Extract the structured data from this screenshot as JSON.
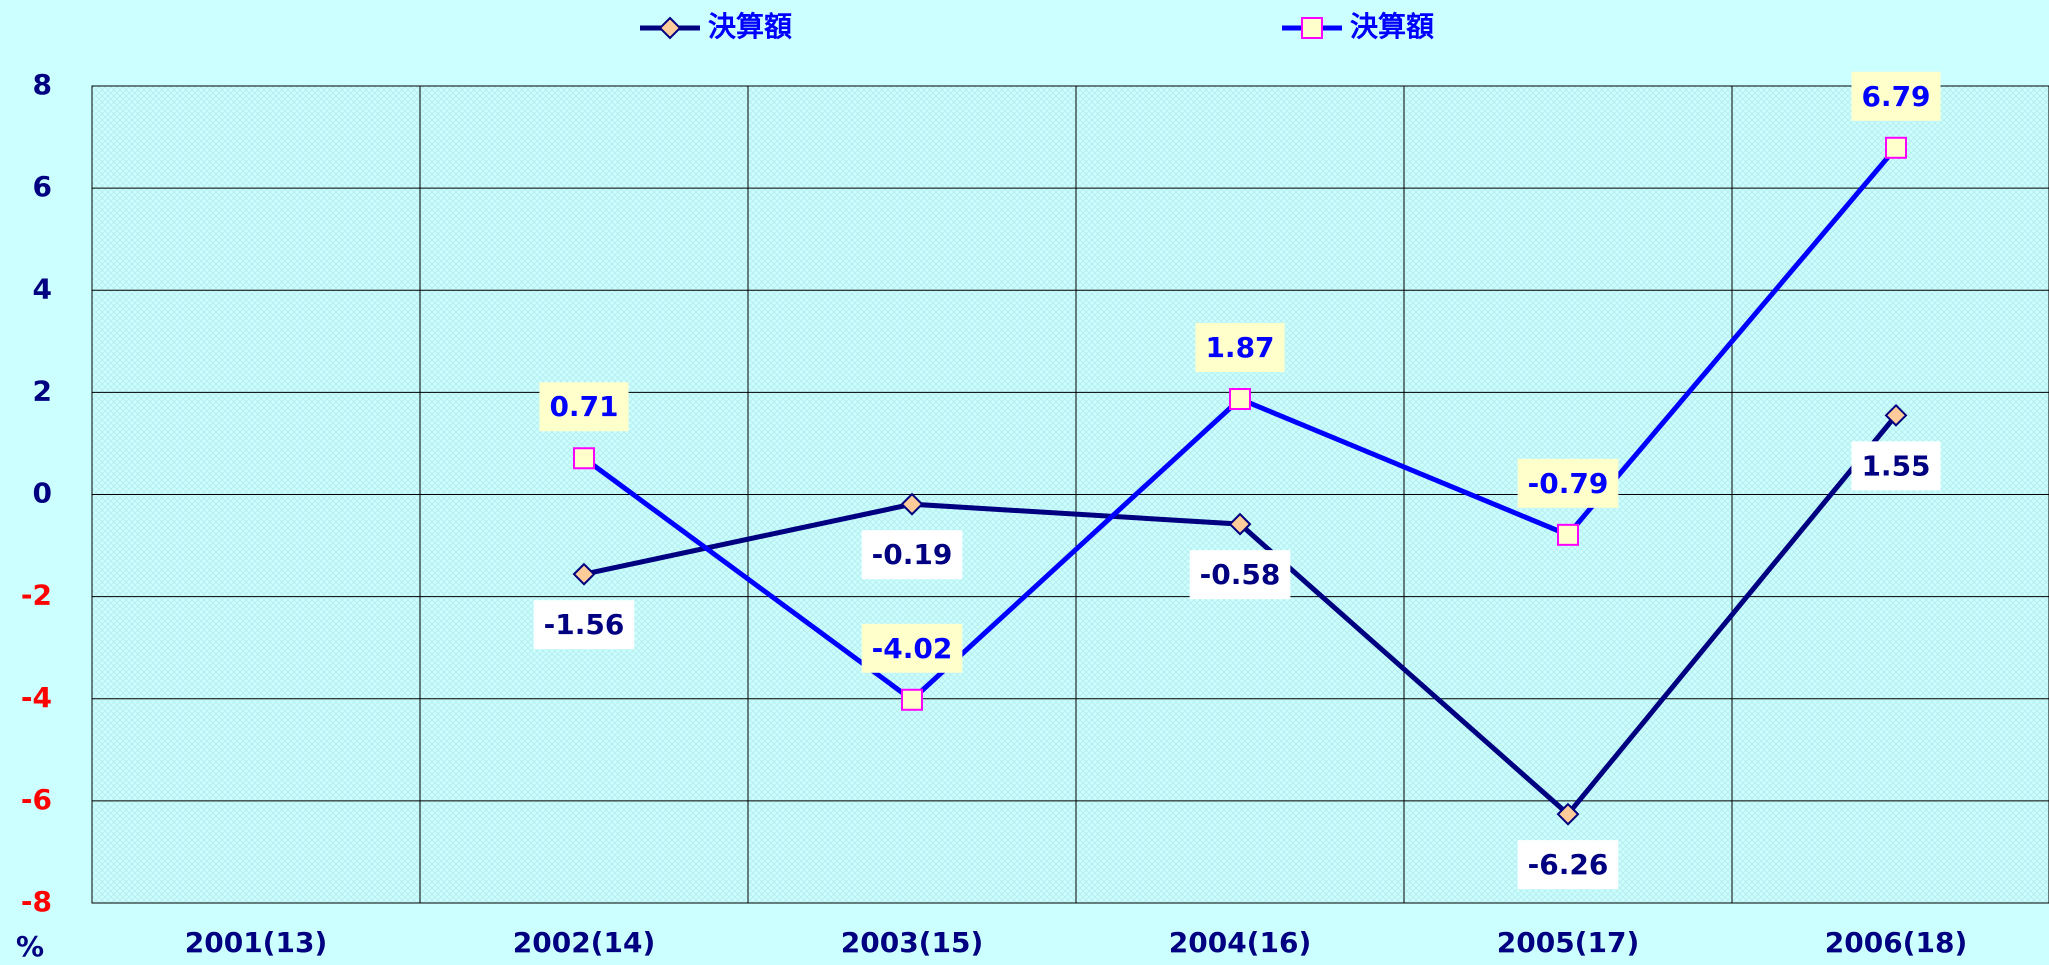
{
  "chart_data": {
    "type": "line",
    "categories": [
      "2001(13)",
      "2002(14)",
      "2003(15)",
      "2004(16)",
      "2005(17)",
      "2006(18)"
    ],
    "series": [
      {
        "name": "決算額",
        "color": "#000080",
        "marker": "diamond",
        "label_fill": "#ffffff",
        "values": [
          null,
          -1.56,
          -0.19,
          -0.58,
          -6.26,
          1.55
        ]
      },
      {
        "name": "決算額",
        "color": "#0000ff",
        "marker": "square",
        "label_fill": "#ffffcc",
        "values": [
          null,
          0.71,
          -4.02,
          1.87,
          -0.79,
          6.79
        ]
      }
    ],
    "ylim": [
      -8,
      8
    ],
    "yticks": [
      -8,
      -6,
      -4,
      -2,
      0,
      2,
      4,
      6,
      8
    ],
    "ylabel": "%",
    "negative_tick_color": "#ff0000",
    "grid": true
  }
}
